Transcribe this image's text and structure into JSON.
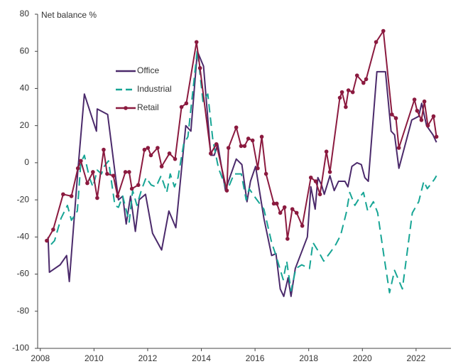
{
  "chart_data": {
    "type": "line",
    "ylabel": "Net balance %",
    "xlim": [
      2007.9,
      2023.3
    ],
    "xticks": [
      2008,
      2010,
      2012,
      2014,
      2016,
      2018,
      2020,
      2022
    ],
    "ylim": [
      -100,
      80
    ],
    "yticks": [
      -100,
      -80,
      -60,
      -40,
      -20,
      0,
      20,
      40,
      60,
      80
    ],
    "grid": false,
    "legend": "upper left",
    "series": [
      {
        "name": "Office",
        "color": "#4b2a6b",
        "style": "solid",
        "markers": false,
        "x": [
          2008.29,
          2008.34,
          2008.74,
          2008.98,
          2009.08,
          2009.4,
          2009.64,
          2010.09,
          2010.12,
          2010.51,
          2010.91,
          2011.07,
          2011.2,
          2011.36,
          2011.54,
          2011.68,
          2011.92,
          2012.18,
          2012.52,
          2012.79,
          2013.05,
          2013.42,
          2013.61,
          2013.85,
          2014.08,
          2014.35,
          2014.48,
          2014.61,
          2014.9,
          2015.01,
          2015.3,
          2015.51,
          2015.7,
          2015.83,
          2016.02,
          2016.33,
          2016.62,
          2016.78,
          2016.94,
          2017.07,
          2017.23,
          2017.34,
          2017.5,
          2017.95,
          2018.08,
          2018.24,
          2018.34,
          2018.48,
          2018.58,
          2018.79,
          2018.95,
          2019.11,
          2019.35,
          2019.46,
          2019.61,
          2019.8,
          2019.96,
          2020.09,
          2020.22,
          2020.54,
          2020.86,
          2021.07,
          2021.2,
          2021.36,
          2021.84,
          2022.1,
          2022.21,
          2022.39,
          2022.63,
          2022.76
        ],
        "values": [
          -40,
          -59,
          -55,
          -50,
          -64,
          -4,
          37,
          17,
          29,
          26,
          -20,
          -18,
          -33,
          -18,
          -37,
          -20,
          -17,
          -38,
          -47,
          -26,
          -35,
          20,
          17,
          60,
          52,
          4,
          4,
          10,
          -15,
          -10,
          2,
          -1,
          -21,
          -10,
          -2,
          -30,
          -50,
          -49,
          -68,
          -72,
          -62,
          -72,
          -57,
          -40,
          -13,
          -25,
          -8,
          -12,
          -17,
          -7,
          -15,
          -10,
          -10,
          -13,
          -2,
          0,
          -1,
          -8,
          -10,
          49,
          49,
          17,
          15,
          -3,
          23,
          25,
          32,
          20,
          15,
          11
        ]
      },
      {
        "name": "Industrial",
        "color": "#17a595",
        "style": "dashed",
        "markers": false,
        "x": [
          2008.4,
          2008.53,
          2008.77,
          2009.01,
          2009.16,
          2009.38,
          2009.51,
          2009.64,
          2009.83,
          2009.96,
          2010.12,
          2010.28,
          2010.38,
          2010.54,
          2010.78,
          2010.91,
          2011.07,
          2011.31,
          2011.44,
          2011.6,
          2011.76,
          2011.94,
          2012.13,
          2012.31,
          2012.5,
          2012.71,
          2012.84,
          2013.0,
          2013.13,
          2013.34,
          2013.5,
          2013.85,
          2014.06,
          2014.24,
          2014.43,
          2014.64,
          2014.96,
          2015.22,
          2015.49,
          2015.67,
          2015.78,
          2016.02,
          2016.33,
          2016.62,
          2016.78,
          2017.05,
          2017.18,
          2017.34,
          2017.52,
          2017.74,
          2018.03,
          2018.16,
          2018.37,
          2018.56,
          2018.82,
          2019.01,
          2019.19,
          2019.4,
          2019.53,
          2019.72,
          2019.93,
          2020.04,
          2020.2,
          2020.41,
          2020.57,
          2020.8,
          2021.01,
          2021.2,
          2021.49,
          2021.86,
          2022.1,
          2022.29,
          2022.42,
          2022.68,
          2022.76
        ],
        "values": [
          -44,
          -42,
          -30,
          -23,
          -31,
          -26,
          0,
          4,
          -8,
          -13,
          -4,
          -6,
          -2,
          1,
          -23,
          -24,
          -18,
          -32,
          -15,
          -23,
          -15,
          -8,
          -12,
          -13,
          -7,
          -16,
          -6,
          -13,
          -8,
          10,
          14,
          61,
          33,
          37,
          12,
          -3,
          -15,
          -6,
          -6,
          -20,
          -14,
          -19,
          -25,
          -43,
          -50,
          -63,
          -53,
          -69,
          -57,
          -55,
          -57,
          -43,
          -48,
          -53,
          -48,
          -44,
          -39,
          -27,
          -16,
          -23,
          -18,
          -16,
          -26,
          -21,
          -27,
          -50,
          -70,
          -58,
          -68,
          -27,
          -21,
          -10,
          -14,
          -9,
          -7
        ]
      },
      {
        "name": "Retail",
        "color": "#8b1a3f",
        "style": "solid",
        "markers": true,
        "x": [
          2008.24,
          2008.48,
          2008.85,
          2009.16,
          2009.4,
          2009.51,
          2009.75,
          2009.96,
          2010.12,
          2010.36,
          2010.49,
          2010.72,
          2010.88,
          2011.17,
          2011.31,
          2011.41,
          2011.65,
          2011.88,
          2012.01,
          2012.12,
          2012.37,
          2012.52,
          2012.81,
          2013.02,
          2013.26,
          2013.44,
          2013.82,
          2013.95,
          2014.35,
          2014.56,
          2014.95,
          2015.01,
          2015.3,
          2015.48,
          2015.61,
          2015.75,
          2015.91,
          2016.1,
          2016.25,
          2016.41,
          2016.7,
          2016.81,
          2016.94,
          2017.1,
          2017.21,
          2017.39,
          2017.55,
          2017.76,
          2018.08,
          2018.26,
          2018.42,
          2018.66,
          2018.79,
          2019.16,
          2019.24,
          2019.38,
          2019.48,
          2019.64,
          2019.8,
          2020.04,
          2020.14,
          2020.51,
          2020.78,
          2021.1,
          2021.25,
          2021.36,
          2021.94,
          2022.04,
          2022.2,
          2022.31,
          2022.44,
          2022.65,
          2022.76
        ],
        "values": [
          -42,
          -36,
          -17,
          -18,
          -3,
          1,
          -11,
          -5,
          -19,
          7,
          -6,
          -7,
          -18,
          -5,
          -5,
          -14,
          -12,
          7,
          8,
          4,
          8,
          -2,
          5,
          2,
          30,
          32,
          65,
          51,
          5,
          10,
          -15,
          8,
          19,
          9,
          9,
          13,
          12,
          -3,
          14,
          -6,
          -22,
          -22,
          -27,
          -24,
          -41,
          -25,
          -27,
          -34,
          -8,
          -10,
          -17,
          6,
          -5,
          35,
          38,
          30,
          39,
          38,
          47,
          43,
          45,
          65,
          71,
          26,
          24,
          8,
          34,
          28,
          23,
          33,
          20,
          25,
          14
        ]
      }
    ]
  }
}
